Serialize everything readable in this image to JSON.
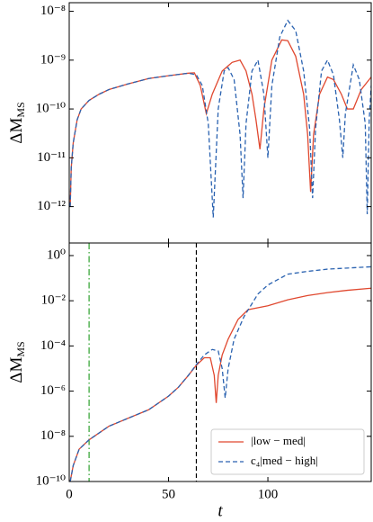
{
  "chart_data": [
    {
      "type": "line",
      "ylabel": "ΔM",
      "ylabel_sub": "MS",
      "yscale": "log",
      "xlim": [
        0,
        152
      ],
      "ylim": [
        1.8e-13,
        1.5e-08
      ],
      "yticks": [
        {
          "value": 1e-08,
          "label": "10⁻⁸"
        },
        {
          "value": 1e-09,
          "label": "10⁻⁹"
        },
        {
          "value": 1e-10,
          "label": "10⁻¹⁰"
        },
        {
          "value": 1e-11,
          "label": "10⁻¹¹"
        },
        {
          "value": 1e-12,
          "label": "10⁻¹²"
        }
      ],
      "series": [
        {
          "name": "|low − med|",
          "color": "#e0482f",
          "style": "solid",
          "x": [
            0.5,
            1,
            2,
            4,
            6,
            10,
            15,
            20,
            30,
            40,
            50,
            60,
            63,
            66,
            69,
            72,
            77,
            82,
            86,
            89,
            92,
            94,
            96,
            98,
            102,
            107,
            110,
            114,
            118,
            120,
            121.5,
            123,
            126,
            130,
            133,
            137,
            140,
            143,
            147,
            152
          ],
          "values": [
            1e-12,
            6e-12,
            2e-11,
            6e-11,
            1e-10,
            1.5e-10,
            2e-10,
            2.5e-10,
            3.3e-10,
            4.2e-10,
            4.8e-10,
            5.4e-10,
            5.5e-10,
            3e-10,
            8e-11,
            2e-10,
            6e-10,
            9e-10,
            1e-09,
            6e-10,
            2e-10,
            6e-11,
            1.5e-11,
            1e-10,
            1e-09,
            2.6e-09,
            2.5e-09,
            1.2e-09,
            2e-10,
            3e-11,
            2e-12,
            3e-11,
            2e-10,
            4.5e-10,
            4e-10,
            2e-10,
            1e-10,
            1e-10,
            2.5e-10,
            4.5e-10
          ]
        },
        {
          "name": "c₄|med − high|",
          "color": "#2a62b0",
          "style": "dashed",
          "x": [
            0.5,
            1,
            2,
            4,
            6,
            10,
            15,
            20,
            30,
            40,
            50,
            60,
            64,
            67,
            70,
            72.5,
            75,
            78,
            80,
            83,
            86,
            87.5,
            89,
            92,
            95,
            98,
            100,
            102,
            106,
            110,
            114,
            118,
            121,
            122.5,
            124,
            127,
            130,
            133,
            136,
            137.7,
            139,
            143,
            146,
            149,
            150,
            151,
            152
          ],
          "values": [
            1e-12,
            6e-12,
            2e-11,
            6e-11,
            1e-10,
            1.5e-10,
            2e-10,
            2.5e-10,
            3.3e-10,
            4.2e-10,
            4.8e-10,
            5.4e-10,
            5e-10,
            3e-10,
            5e-11,
            6e-13,
            1e-10,
            6e-10,
            7e-10,
            4e-10,
            3e-11,
            1.5e-12,
            5e-11,
            6e-10,
            1e-09,
            2e-10,
            1e-11,
            3e-10,
            3e-09,
            6.5e-09,
            4e-09,
            6e-10,
            4e-11,
            1.5e-12,
            4e-11,
            6e-10,
            1e-09,
            5e-10,
            6e-11,
            1e-11,
            8e-11,
            8e-10,
            4e-10,
            5e-11,
            7e-13,
            6e-11,
            3e-10
          ]
        }
      ]
    },
    {
      "type": "line",
      "ylabel": "ΔM",
      "ylabel_sub": "MS",
      "xlabel": "t",
      "yscale": "log",
      "xlim": [
        0,
        152
      ],
      "ylim": [
        1e-10,
        3.6
      ],
      "xticks": [
        0,
        50,
        100
      ],
      "yticks": [
        {
          "value": 1,
          "label": "10⁰"
        },
        {
          "value": 0.01,
          "label": "10⁻²"
        },
        {
          "value": 0.0001,
          "label": "10⁻⁴"
        },
        {
          "value": 1e-06,
          "label": "10⁻⁶"
        },
        {
          "value": 1e-08,
          "label": "10⁻⁸"
        },
        {
          "value": 1e-10,
          "label": "10⁻¹⁰"
        }
      ],
      "vlines": [
        {
          "x": 10,
          "color": "#2ca02c",
          "style": "dashdot"
        },
        {
          "x": 64,
          "color": "#000000",
          "style": "dashed"
        }
      ],
      "legend": "lower right",
      "series": [
        {
          "name": "|low − med|",
          "color": "#e0482f",
          "style": "solid",
          "x": [
            0.5,
            2,
            5,
            10,
            20,
            30,
            40,
            50,
            55,
            60,
            64,
            68,
            71,
            73,
            74,
            75,
            77,
            80,
            85,
            90,
            100,
            110,
            120,
            130,
            140,
            152
          ],
          "values": [
            1e-10,
            5e-10,
            2.7e-09,
            7e-09,
            2.8e-08,
            6.5e-08,
            1.5e-07,
            6e-07,
            1.5e-06,
            5e-06,
            1.4e-05,
            3e-05,
            3e-05,
            5e-06,
            3e-07,
            5e-06,
            4e-05,
            0.0002,
            0.0015,
            0.004,
            0.006,
            0.011,
            0.017,
            0.023,
            0.029,
            0.036
          ]
        },
        {
          "name": "c₄|med − high|",
          "color": "#2a62b0",
          "style": "dashed",
          "x": [
            0.5,
            2,
            5,
            10,
            20,
            30,
            40,
            50,
            55,
            60,
            64,
            68,
            72,
            75,
            77,
            78.5,
            80,
            83,
            88,
            95,
            100,
            110,
            120,
            130,
            140,
            152
          ],
          "values": [
            1e-10,
            5e-10,
            2.7e-09,
            7e-09,
            2.8e-08,
            6.5e-08,
            1.5e-07,
            6e-07,
            1.5e-06,
            5e-06,
            1.5e-05,
            4e-05,
            7e-05,
            6e-05,
            1e-05,
            5e-07,
            1e-05,
            0.0002,
            0.002,
            0.02,
            0.05,
            0.15,
            0.2,
            0.25,
            0.28,
            0.32
          ]
        }
      ]
    }
  ]
}
